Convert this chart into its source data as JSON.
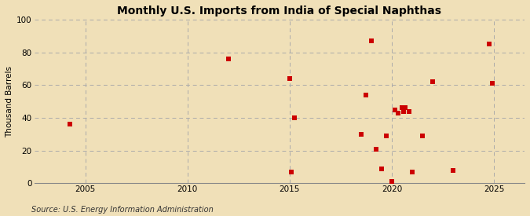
{
  "title": "Monthly U.S. Imports from India of Special Naphthas",
  "ylabel": "Thousand Barrels",
  "source": "Source: U.S. Energy Information Administration",
  "background_color": "#f0e0b8",
  "plot_bg_color": "#f0e0b8",
  "marker_color": "#cc0000",
  "marker_size": 4,
  "xlim": [
    2002.5,
    2026.5
  ],
  "ylim": [
    0,
    100
  ],
  "yticks": [
    0,
    20,
    40,
    60,
    80,
    100
  ],
  "xticks": [
    2005,
    2010,
    2015,
    2020,
    2025
  ],
  "data_points": [
    [
      2004.25,
      36
    ],
    [
      2012.0,
      76
    ],
    [
      2015.0,
      64
    ],
    [
      2015.08,
      7
    ],
    [
      2015.25,
      40
    ],
    [
      2018.5,
      30
    ],
    [
      2018.75,
      54
    ],
    [
      2019.0,
      87
    ],
    [
      2019.25,
      21
    ],
    [
      2019.5,
      9
    ],
    [
      2019.75,
      29
    ],
    [
      2020.0,
      1
    ],
    [
      2020.17,
      45
    ],
    [
      2020.33,
      43
    ],
    [
      2020.5,
      46
    ],
    [
      2020.58,
      44
    ],
    [
      2020.67,
      46
    ],
    [
      2020.83,
      44
    ],
    [
      2021.0,
      7
    ],
    [
      2021.5,
      29
    ],
    [
      2022.0,
      62
    ],
    [
      2023.0,
      8
    ],
    [
      2024.75,
      85
    ],
    [
      2024.92,
      61
    ]
  ]
}
